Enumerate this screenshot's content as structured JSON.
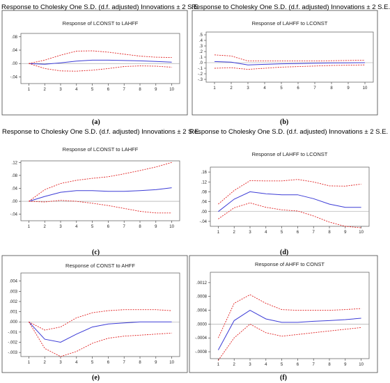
{
  "group_titles": [
    "Response to Cholesky One S.D. (d.f. adjusted) Innovations ± 2 S.E.",
    "Response to Cholesky One S.D. (d.f. adjusted) Innovations ± 2 S.E.",
    "Response to Cholesky One S.D. (d.f. adjusted) Innovations ± 2 S.E.",
    "Response to Cholesky One S.D. (d.f. adjusted) Innovations ± 2 S.E."
  ],
  "colors": {
    "response": "#3b3bd6",
    "bands": "#e02020",
    "zero": "#999999",
    "frame": "#555555"
  },
  "chart_data": [
    {
      "label": "(a)",
      "type": "line",
      "title": "Response of LCONST to LAHFF",
      "x": [
        1,
        2,
        3,
        4,
        5,
        6,
        7,
        8,
        9,
        10
      ],
      "xticks": [
        "1",
        "2",
        "3",
        "4",
        "5",
        "6",
        "7",
        "8",
        "9",
        "10"
      ],
      "ylim": [
        -0.06,
        0.09
      ],
      "yticks": [
        {
          "v": 0.08,
          "t": ".08"
        },
        {
          "v": 0.04,
          "t": ".04"
        },
        {
          "v": 0,
          "t": ".00"
        },
        {
          "v": -0.04,
          "t": "-.04"
        }
      ],
      "series": [
        {
          "role": "response",
          "values": [
            0,
            -0.002,
            0.002,
            0.007,
            0.01,
            0.01,
            0.009,
            0.008,
            0.006,
            0.004
          ]
        },
        {
          "role": "upper",
          "values": [
            0,
            0.01,
            0.025,
            0.037,
            0.038,
            0.034,
            0.028,
            0.022,
            0.019,
            0.018
          ]
        },
        {
          "role": "lower",
          "values": [
            0,
            -0.015,
            -0.022,
            -0.023,
            -0.02,
            -0.015,
            -0.009,
            -0.007,
            -0.008,
            -0.011
          ]
        }
      ]
    },
    {
      "label": "(b)",
      "type": "line",
      "title": "Response of LAHFF to LCONST",
      "x": [
        1,
        2,
        3,
        4,
        5,
        6,
        7,
        8,
        9,
        10
      ],
      "xticks": [
        "1",
        "2",
        "3",
        "4",
        "5",
        "6",
        "7",
        "8",
        "9",
        "10"
      ],
      "ylim": [
        -0.35,
        0.55
      ],
      "yticks": [
        {
          "v": 0.5,
          "t": ".5"
        },
        {
          "v": 0.4,
          "t": ".4"
        },
        {
          "v": 0.3,
          "t": ".3"
        },
        {
          "v": 0.2,
          "t": ".2"
        },
        {
          "v": 0.1,
          "t": ".1"
        },
        {
          "v": 0,
          "t": ".0"
        },
        {
          "v": -0.1,
          "t": "-.1"
        },
        {
          "v": -0.2,
          "t": "-.2"
        },
        {
          "v": -0.3,
          "t": "-.3"
        }
      ],
      "series": [
        {
          "role": "response",
          "values": [
            0.02,
            0.01,
            -0.04,
            -0.03,
            -0.02,
            -0.015,
            -0.01,
            -0.005,
            -0.002,
            0
          ]
        },
        {
          "role": "upper",
          "values": [
            0.14,
            0.12,
            0.03,
            0.03,
            0.03,
            0.03,
            0.03,
            0.035,
            0.04,
            0.045
          ]
        },
        {
          "role": "lower",
          "values": [
            -0.1,
            -0.09,
            -0.12,
            -0.1,
            -0.08,
            -0.07,
            -0.06,
            -0.05,
            -0.045,
            -0.04
          ]
        }
      ]
    },
    {
      "label": "(c)",
      "type": "line",
      "title": "Response of LCONST to LAHFF",
      "x": [
        1,
        2,
        3,
        4,
        5,
        6,
        7,
        8,
        9,
        10
      ],
      "xticks": [
        "1",
        "2",
        "3",
        "4",
        "5",
        "6",
        "7",
        "8",
        "9",
        "10"
      ],
      "ylim": [
        -0.06,
        0.125
      ],
      "yticks": [
        {
          "v": 0.12,
          "t": ".12"
        },
        {
          "v": 0.08,
          "t": ".08"
        },
        {
          "v": 0.04,
          "t": ".04"
        },
        {
          "v": 0,
          "t": ".00"
        },
        {
          "v": -0.04,
          "t": "-.04"
        }
      ],
      "series": [
        {
          "role": "response",
          "values": [
            0,
            0.015,
            0.028,
            0.033,
            0.033,
            0.031,
            0.031,
            0.033,
            0.036,
            0.042
          ]
        },
        {
          "role": "upper",
          "values": [
            0,
            0.036,
            0.055,
            0.065,
            0.071,
            0.076,
            0.085,
            0.095,
            0.106,
            0.12
          ]
        },
        {
          "role": "lower",
          "values": [
            0,
            -0.002,
            0.003,
            0.0,
            -0.006,
            -0.013,
            -0.022,
            -0.031,
            -0.036,
            -0.036
          ]
        }
      ]
    },
    {
      "label": "(d)",
      "type": "line",
      "title": "Response of LAHFF to LCONST",
      "x": [
        1,
        2,
        3,
        4,
        5,
        6,
        7,
        8,
        9,
        10
      ],
      "xticks": [
        "1",
        "2",
        "3",
        "4",
        "5",
        "6",
        "7",
        "8",
        "9",
        "10"
      ],
      "ylim": [
        -0.06,
        0.18
      ],
      "yticks": [
        {
          "v": 0.16,
          "t": ".16"
        },
        {
          "v": 0.12,
          "t": ".12"
        },
        {
          "v": 0.08,
          "t": ".08"
        },
        {
          "v": 0.04,
          "t": ".04"
        },
        {
          "v": 0,
          "t": ".00"
        },
        {
          "v": -0.04,
          "t": "-.04"
        }
      ],
      "series": [
        {
          "role": "response",
          "values": [
            0,
            0.05,
            0.08,
            0.072,
            0.068,
            0.068,
            0.052,
            0.03,
            0.017,
            0.017
          ]
        },
        {
          "role": "upper",
          "values": [
            0.03,
            0.085,
            0.125,
            0.124,
            0.124,
            0.13,
            0.12,
            0.104,
            0.103,
            0.111
          ]
        },
        {
          "role": "lower",
          "values": [
            -0.03,
            0.015,
            0.035,
            0.017,
            0.007,
            0.002,
            -0.018,
            -0.043,
            -0.06,
            -0.066
          ]
        }
      ]
    },
    {
      "label": "(e)",
      "type": "line",
      "title": "Response of CONST to AHFF",
      "x": [
        1,
        2,
        3,
        4,
        5,
        6,
        7,
        8,
        9,
        10
      ],
      "xticks": [
        "1",
        "2",
        "3",
        "4",
        "5",
        "6",
        "7",
        "8",
        "9",
        "10"
      ],
      "ylim": [
        -0.0034,
        0.0048
      ],
      "yticks": [
        {
          "v": 0.004,
          "t": ".004"
        },
        {
          "v": 0.003,
          "t": ".003"
        },
        {
          "v": 0.002,
          "t": ".002"
        },
        {
          "v": 0.001,
          "t": ".001"
        },
        {
          "v": 0,
          "t": ".000"
        },
        {
          "v": -0.001,
          "t": "-.001"
        },
        {
          "v": -0.002,
          "t": "-.002"
        },
        {
          "v": -0.003,
          "t": "-.003"
        }
      ],
      "series": [
        {
          "role": "response",
          "values": [
            0,
            -0.0017,
            -0.002,
            -0.0012,
            -0.0005,
            -0.0002,
            -0.0001,
            0,
            0,
            0
          ]
        },
        {
          "role": "upper",
          "values": [
            0,
            -0.0008,
            -0.0005,
            0.0004,
            0.0009,
            0.0011,
            0.0012,
            0.0012,
            0.0012,
            0.0011
          ]
        },
        {
          "role": "lower",
          "values": [
            0,
            -0.0026,
            -0.0034,
            -0.0029,
            -0.0021,
            -0.0016,
            -0.0014,
            -0.0013,
            -0.0012,
            -0.0011
          ]
        }
      ]
    },
    {
      "label": "(f)",
      "type": "line",
      "title": "Response of AHFF to CONST",
      "x": [
        1,
        2,
        3,
        4,
        5,
        6,
        7,
        8,
        9,
        10
      ],
      "xticks": [
        "1",
        "2",
        "3",
        "4",
        "5",
        "6",
        "7",
        "8",
        "9",
        "10"
      ],
      "ylim": [
        -0.001,
        0.0015
      ],
      "yticks": [
        {
          "v": 0.0012,
          "t": ".0012"
        },
        {
          "v": 0.0008,
          "t": ".0008"
        },
        {
          "v": 0.0004,
          "t": ".0004"
        },
        {
          "v": 0,
          "t": ".0000"
        },
        {
          "v": -0.0004,
          "t": "-.0004"
        },
        {
          "v": -0.0008,
          "t": "-.0008"
        }
      ],
      "series": [
        {
          "role": "response",
          "values": [
            -0.00075,
            0.0001,
            0.0004,
            0.00015,
            5e-05,
            5e-05,
            8e-05,
            0.0001,
            0.00013,
            0.00017
          ]
        },
        {
          "role": "upper",
          "values": [
            -0.0004,
            0.0006,
            0.00085,
            0.0006,
            0.00042,
            0.0004,
            0.0004,
            0.0004,
            0.00042,
            0.00045
          ]
        },
        {
          "role": "lower",
          "values": [
            -0.00105,
            -0.0004,
            0.0,
            -0.00025,
            -0.00035,
            -0.0003,
            -0.00025,
            -0.0002,
            -0.00015,
            -0.0001
          ]
        }
      ]
    }
  ]
}
